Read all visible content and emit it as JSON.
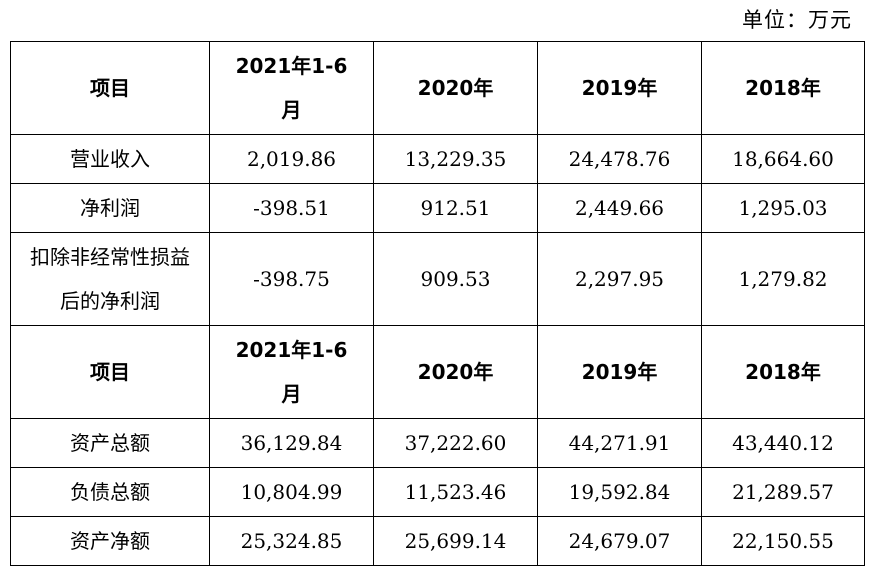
{
  "unit_label": "单位：万元",
  "table1": {
    "header": [
      "项目",
      "2021年1-6月",
      "2020年",
      "2019年",
      "2018年"
    ],
    "rows": [
      [
        "营业收入",
        "2,019.86",
        "13,229.35",
        "24,478.76",
        "18,664.60"
      ],
      [
        "净利润",
        "-398.51",
        "912.51",
        "2,449.66",
        "1,295.03"
      ],
      [
        "扣除非经常性损益后的净利润",
        "-398.75",
        "909.53",
        "2,297.95",
        "1,279.82"
      ]
    ]
  },
  "table2": {
    "header": [
      "项目",
      "2021年1-6月",
      "2020年",
      "2019年",
      "2018年"
    ],
    "rows": [
      [
        "资产总额",
        "36,129.84",
        "37,222.60",
        "44,271.91",
        "43,440.12"
      ],
      [
        "负债总额",
        "10,804.99",
        "11,523.46",
        "19,592.84",
        "21,289.57"
      ],
      [
        "资产净额",
        "25,324.85",
        "25,699.14",
        "24,679.07",
        "22,150.55"
      ]
    ]
  }
}
